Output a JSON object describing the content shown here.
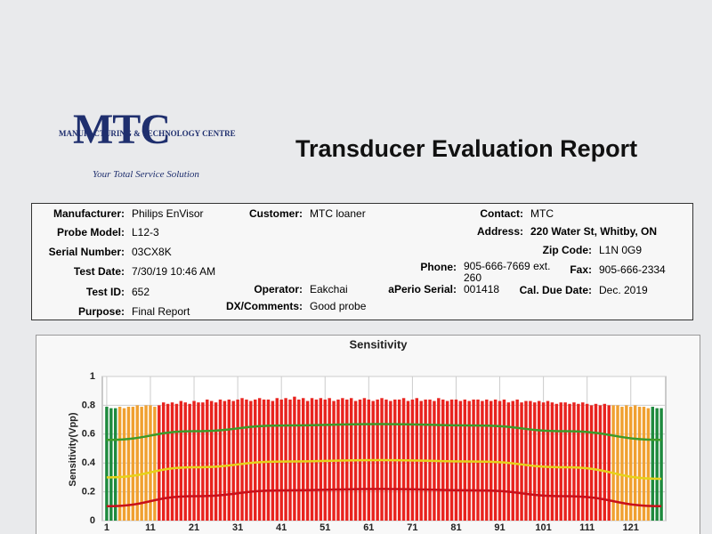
{
  "header": {
    "logo": "MTC",
    "logo_subtitle": "MANUFACTURING & TECHNOLOGY CENTRE",
    "tagline": "Your Total Service Solution",
    "title": "Transducer Evaluation Report"
  },
  "fields": [
    {
      "label": "Manufacturer:",
      "value": "Philips EnVisor"
    },
    {
      "label": "Probe Model:",
      "value": "L12-3"
    },
    {
      "label": "Serial Number:",
      "value": "03CX8K"
    },
    {
      "label": "Test Date:",
      "value": "7/30/19 10:46 AM"
    },
    {
      "label": "Test ID:",
      "value": "652"
    },
    {
      "label": "Purpose:",
      "value": "Final Report"
    },
    {
      "label": "Customer:",
      "value": "MTC loaner"
    },
    {
      "label": "Operator:",
      "value": "Eakchai"
    },
    {
      "label": "DX/Comments:",
      "value": "Good probe"
    },
    {
      "label": "Contact:",
      "value": "MTC"
    },
    {
      "label": "Address:",
      "value": "220 Water St, Whitby, ON"
    },
    {
      "label": "Zip Code:",
      "value": "L1N 0G9"
    },
    {
      "label": "Phone:",
      "value": "905-666-7669 ext. 260"
    },
    {
      "label": "Fax:",
      "value": "905-666-2334"
    },
    {
      "label": "aPerio Serial:",
      "value": "001418"
    },
    {
      "label": "Cal. Due Date:",
      "value": "Dec. 2019"
    }
  ],
  "chart_data": {
    "type": "bar",
    "title": "Sensitivity",
    "y_label": "Sensitivity(Vpp)",
    "xlim": [
      0,
      129
    ],
    "xticks": [
      1,
      11,
      21,
      31,
      41,
      51,
      61,
      71,
      81,
      91,
      101,
      111,
      121
    ],
    "ylim": [
      0,
      1
    ],
    "yticks": [
      0,
      0.2,
      0.4,
      0.6,
      0.8,
      1
    ],
    "grid": true,
    "values": [
      0.79,
      0.78,
      0.78,
      0.79,
      0.78,
      0.79,
      0.79,
      0.8,
      0.79,
      0.8,
      0.8,
      0.79,
      0.8,
      0.82,
      0.81,
      0.82,
      0.81,
      0.83,
      0.82,
      0.81,
      0.83,
      0.82,
      0.82,
      0.84,
      0.83,
      0.82,
      0.84,
      0.83,
      0.84,
      0.83,
      0.84,
      0.85,
      0.84,
      0.83,
      0.84,
      0.85,
      0.84,
      0.84,
      0.83,
      0.85,
      0.84,
      0.85,
      0.84,
      0.86,
      0.84,
      0.85,
      0.83,
      0.85,
      0.84,
      0.85,
      0.84,
      0.85,
      0.83,
      0.84,
      0.85,
      0.84,
      0.85,
      0.83,
      0.84,
      0.85,
      0.84,
      0.83,
      0.84,
      0.85,
      0.84,
      0.83,
      0.84,
      0.84,
      0.85,
      0.83,
      0.84,
      0.85,
      0.83,
      0.84,
      0.84,
      0.83,
      0.85,
      0.84,
      0.83,
      0.84,
      0.84,
      0.83,
      0.84,
      0.83,
      0.84,
      0.84,
      0.83,
      0.84,
      0.83,
      0.84,
      0.83,
      0.84,
      0.82,
      0.83,
      0.84,
      0.82,
      0.83,
      0.83,
      0.82,
      0.83,
      0.82,
      0.83,
      0.82,
      0.81,
      0.82,
      0.82,
      0.81,
      0.82,
      0.81,
      0.82,
      0.81,
      0.8,
      0.81,
      0.8,
      0.81,
      0.8,
      0.8,
      0.8,
      0.79,
      0.8,
      0.79,
      0.8,
      0.79,
      0.79,
      0.78,
      0.79,
      0.78,
      0.78
    ],
    "colors": [
      "#1e8a3e",
      "#1e8a3e",
      "#1e8a3e",
      "#f0a030",
      "#f0a030",
      "#f0a030",
      "#f0a030",
      "#f0a030",
      "#f0a030",
      "#f0a030",
      "#f0a030",
      "#f0a030",
      "#e8231e",
      "#e8231e",
      "#e8231e",
      "#e8231e",
      "#e8231e",
      "#e8231e",
      "#e8231e",
      "#e8231e",
      "#e8231e",
      "#e8231e",
      "#e8231e",
      "#e8231e",
      "#e8231e",
      "#e8231e",
      "#e8231e",
      "#e8231e",
      "#e8231e",
      "#e8231e",
      "#e8231e",
      "#e8231e",
      "#e8231e",
      "#e8231e",
      "#e8231e",
      "#e8231e",
      "#e8231e",
      "#e8231e",
      "#e8231e",
      "#e8231e",
      "#e8231e",
      "#e8231e",
      "#e8231e",
      "#e8231e",
      "#e8231e",
      "#e8231e",
      "#e8231e",
      "#e8231e",
      "#e8231e",
      "#e8231e",
      "#e8231e",
      "#e8231e",
      "#e8231e",
      "#e8231e",
      "#e8231e",
      "#e8231e",
      "#e8231e",
      "#e8231e",
      "#e8231e",
      "#e8231e",
      "#e8231e",
      "#e8231e",
      "#e8231e",
      "#e8231e",
      "#e8231e",
      "#e8231e",
      "#e8231e",
      "#e8231e",
      "#e8231e",
      "#e8231e",
      "#e8231e",
      "#e8231e",
      "#e8231e",
      "#e8231e",
      "#e8231e",
      "#e8231e",
      "#e8231e",
      "#e8231e",
      "#e8231e",
      "#e8231e",
      "#e8231e",
      "#e8231e",
      "#e8231e",
      "#e8231e",
      "#e8231e",
      "#e8231e",
      "#e8231e",
      "#e8231e",
      "#e8231e",
      "#e8231e",
      "#e8231e",
      "#e8231e",
      "#e8231e",
      "#e8231e",
      "#e8231e",
      "#e8231e",
      "#e8231e",
      "#e8231e",
      "#e8231e",
      "#e8231e",
      "#e8231e",
      "#e8231e",
      "#e8231e",
      "#e8231e",
      "#e8231e",
      "#e8231e",
      "#e8231e",
      "#e8231e",
      "#e8231e",
      "#e8231e",
      "#e8231e",
      "#e8231e",
      "#e8231e",
      "#e8231e",
      "#e8231e",
      "#e8231e",
      "#f0a030",
      "#f0a030",
      "#f0a030",
      "#f0a030",
      "#f0a030",
      "#f0a030",
      "#f0a030",
      "#f0a030",
      "#f0a030",
      "#1e8a3e",
      "#1e8a3e",
      "#1e8a3e"
    ],
    "lines": [
      {
        "color": "#3d9a2a",
        "x": [
          1,
          21,
          41,
          64,
          86,
          106,
          128
        ],
        "values": [
          0.56,
          0.62,
          0.66,
          0.67,
          0.66,
          0.62,
          0.56
        ]
      },
      {
        "color": "#e6d21a",
        "x": [
          1,
          21,
          41,
          64,
          86,
          106,
          128
        ],
        "values": [
          0.3,
          0.37,
          0.41,
          0.42,
          0.41,
          0.37,
          0.29
        ]
      },
      {
        "color": "#c8101a",
        "x": [
          1,
          21,
          41,
          64,
          86,
          106,
          128
        ],
        "values": [
          0.1,
          0.17,
          0.21,
          0.22,
          0.21,
          0.17,
          0.1
        ]
      }
    ]
  }
}
